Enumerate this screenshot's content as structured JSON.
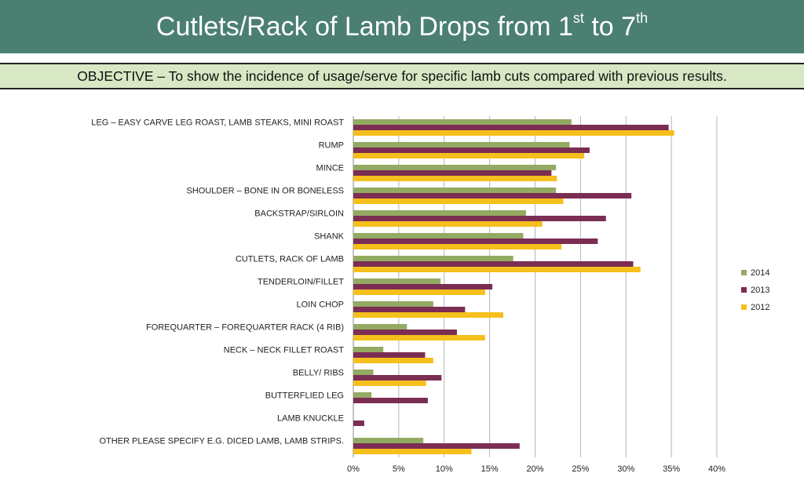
{
  "header": {
    "title_main": "Cutlets/Rack of Lamb Drops from 1",
    "title_sup1": "st",
    "title_mid": " to 7",
    "title_sup2": "th"
  },
  "objective": "OBJECTIVE – To show the incidence of usage/serve for specific lamb cuts compared with previous results.",
  "colors": {
    "2014": "#93aa63",
    "2013": "#7b2d53",
    "2012": "#f5bf1c",
    "header_bg": "#4a7f71",
    "objective_bg": "#d8e8c4"
  },
  "chart_data": {
    "type": "bar",
    "orientation": "horizontal",
    "categories": [
      "LEG – EASY CARVE LEG ROAST, LAMB STEAKS, MINI ROAST",
      "RUMP",
      "MINCE",
      "SHOULDER – BONE IN OR BONELESS",
      "BACKSTRAP/SIRLOIN",
      "SHANK",
      "CUTLETS, RACK OF LAMB",
      "TENDERLOIN/FILLET",
      "LOIN CHOP",
      "FOREQUARTER – FOREQUARTER RACK (4 RIB)",
      "NECK – NECK FILLET ROAST",
      "BELLY/ RIBS",
      "BUTTERFLIED LEG",
      "LAMB KNUCKLE",
      "OTHER PLEASE SPECIFY E.G. DICED LAMB, LAMB STRIPS."
    ],
    "series": [
      {
        "name": "2014",
        "values": [
          24,
          23.8,
          22.3,
          22.3,
          19,
          18.7,
          17.6,
          9.6,
          8.8,
          5.9,
          3.3,
          2.2,
          2,
          0,
          7.7
        ]
      },
      {
        "name": "2013",
        "values": [
          34.7,
          26,
          21.8,
          30.6,
          27.8,
          26.9,
          30.8,
          15.3,
          12.3,
          11.4,
          7.9,
          9.7,
          8.2,
          1.2,
          18.3
        ]
      },
      {
        "name": "2012",
        "values": [
          35.3,
          25.4,
          22.4,
          23.1,
          20.8,
          22.9,
          31.6,
          14.5,
          16.5,
          14.5,
          8.8,
          8,
          0,
          0,
          13
        ]
      }
    ],
    "x_ticks": [
      "0%",
      "5%",
      "10%",
      "15%",
      "20%",
      "25%",
      "30%",
      "35%",
      "40%"
    ],
    "xlim": [
      0,
      40
    ],
    "grid": true,
    "legend": {
      "position": "right",
      "entries": [
        "2014",
        "2013",
        "2012"
      ]
    }
  }
}
